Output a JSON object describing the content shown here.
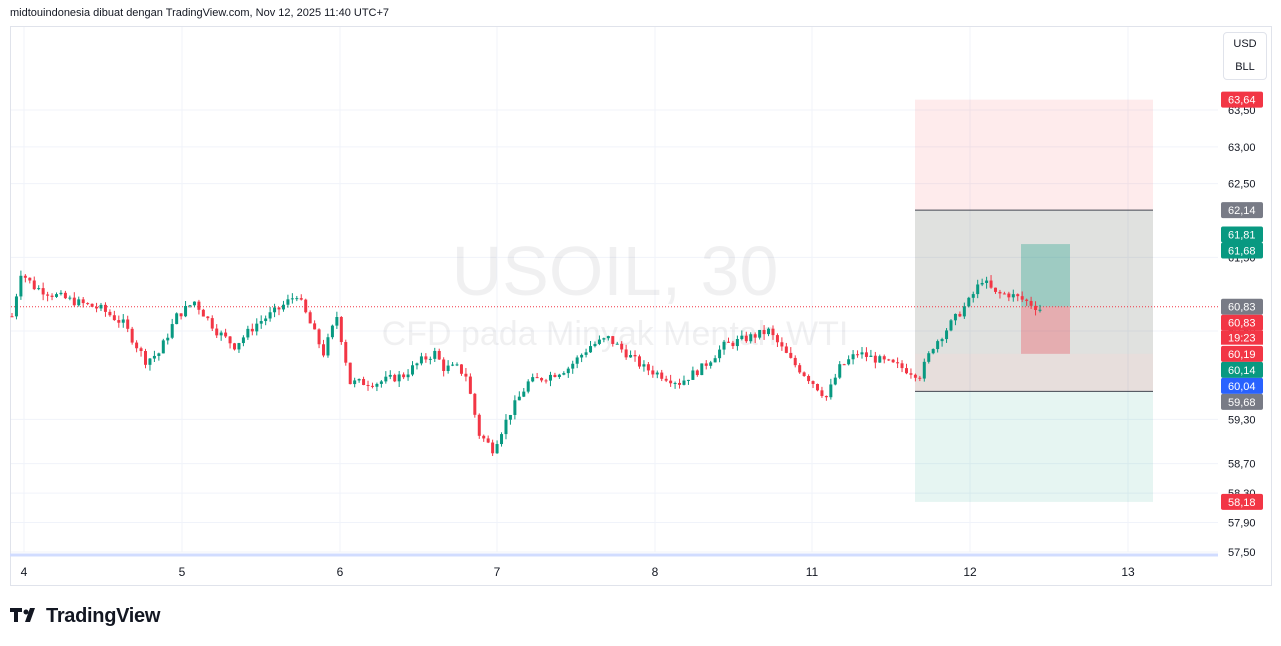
{
  "header": {
    "text": "midtouindonesia dibuat dengan TradingView.com, Nov 12, 2025 11:40 UTC+7"
  },
  "currency": {
    "primary": "USD",
    "unit": "BLL"
  },
  "watermark": {
    "symbol": "USOIL, 30",
    "description": "CFD pada Minyak Mentah WTI"
  },
  "logo": {
    "text": "TradingView"
  },
  "colors": {
    "up": "#089981",
    "down": "#f23645",
    "grid": "#f0f3fa",
    "blue": "#2962ff",
    "gray": "#787b86"
  },
  "chart_data": {
    "type": "candlestick",
    "symbol": "USOIL",
    "interval": "30",
    "ylim": [
      57.2,
      64.2
    ],
    "price_axis": [
      "63,50",
      "63,00",
      "62,50",
      "61,50",
      "60,50",
      "59,30",
      "58,70",
      "58,30",
      "57,90",
      "57,50"
    ],
    "x_ticks": [
      "4",
      "5",
      "6",
      "7",
      "8",
      "11",
      "12",
      "13"
    ],
    "last_price": 60.83,
    "countdown": "19:23",
    "price_tags": [
      {
        "label": "63,64",
        "value": 63.64,
        "color": "#f23645"
      },
      {
        "label": "62,14",
        "value": 62.14,
        "color": "#787b86"
      },
      {
        "label": "61,81",
        "value": 61.81,
        "color": "#089981"
      },
      {
        "label": "61,68",
        "value": 61.68,
        "color": "#089981"
      },
      {
        "label": "60,83",
        "value": 60.83,
        "color": "#787b86"
      },
      {
        "label": "60,83",
        "value": 60.83,
        "color": "#f23645"
      },
      {
        "label": "60,19",
        "value": 60.19,
        "color": "#f23645"
      },
      {
        "label": "60,14",
        "value": 60.14,
        "color": "#089981"
      },
      {
        "label": "60,04",
        "value": 60.04,
        "color": "#2962ff"
      },
      {
        "label": "59,68",
        "value": 59.68,
        "color": "#787b86"
      },
      {
        "label": "58,18",
        "value": 58.18,
        "color": "#f23645"
      }
    ],
    "positions": [
      {
        "kind": "long",
        "entry": 60.19,
        "target": 62.14,
        "stop": 59.68
      },
      {
        "kind": "short",
        "entry": 60.19,
        "target": 58.18,
        "stop": 63.64
      },
      {
        "kind": "trade",
        "entry": 60.83,
        "target": 61.68,
        "stop": 60.19
      }
    ],
    "series_path": [
      [
        0,
        60.7
      ],
      [
        2,
        61.3
      ],
      [
        5,
        61.1
      ],
      [
        9,
        61.0
      ],
      [
        14,
        60.9
      ],
      [
        20,
        60.8
      ],
      [
        25,
        60.6
      ],
      [
        30,
        60.1
      ],
      [
        33,
        60.2
      ],
      [
        37,
        60.7
      ],
      [
        41,
        60.9
      ],
      [
        46,
        60.5
      ],
      [
        50,
        60.3
      ],
      [
        55,
        60.6
      ],
      [
        60,
        60.8
      ],
      [
        64,
        61.0
      ],
      [
        67,
        60.6
      ],
      [
        70,
        60.2
      ],
      [
        73,
        60.7
      ],
      [
        76,
        59.8
      ],
      [
        82,
        59.8
      ],
      [
        88,
        59.9
      ],
      [
        92,
        60.1
      ],
      [
        95,
        60.2
      ],
      [
        97,
        60.0
      ],
      [
        100,
        60.0
      ],
      [
        102,
        59.9
      ],
      [
        105,
        59.1
      ],
      [
        108,
        58.9
      ],
      [
        112,
        59.4
      ],
      [
        116,
        59.8
      ],
      [
        121,
        59.9
      ],
      [
        125,
        60.0
      ],
      [
        130,
        60.3
      ],
      [
        134,
        60.4
      ],
      [
        138,
        60.2
      ],
      [
        142,
        60.0
      ],
      [
        146,
        59.9
      ],
      [
        150,
        59.8
      ],
      [
        155,
        60.0
      ],
      [
        160,
        60.3
      ],
      [
        165,
        60.4
      ],
      [
        170,
        60.5
      ],
      [
        175,
        60.1
      ],
      [
        180,
        59.8
      ],
      [
        183,
        59.6
      ],
      [
        186,
        60.0
      ],
      [
        190,
        60.2
      ],
      [
        195,
        60.1
      ],
      [
        200,
        60.0
      ],
      [
        204,
        59.9
      ],
      [
        207,
        60.3
      ],
      [
        211,
        60.6
      ],
      [
        215,
        60.9
      ],
      [
        218,
        61.2
      ],
      [
        221,
        61.0
      ],
      [
        224,
        61.0
      ],
      [
        228,
        60.9
      ],
      [
        231,
        60.8
      ]
    ]
  }
}
